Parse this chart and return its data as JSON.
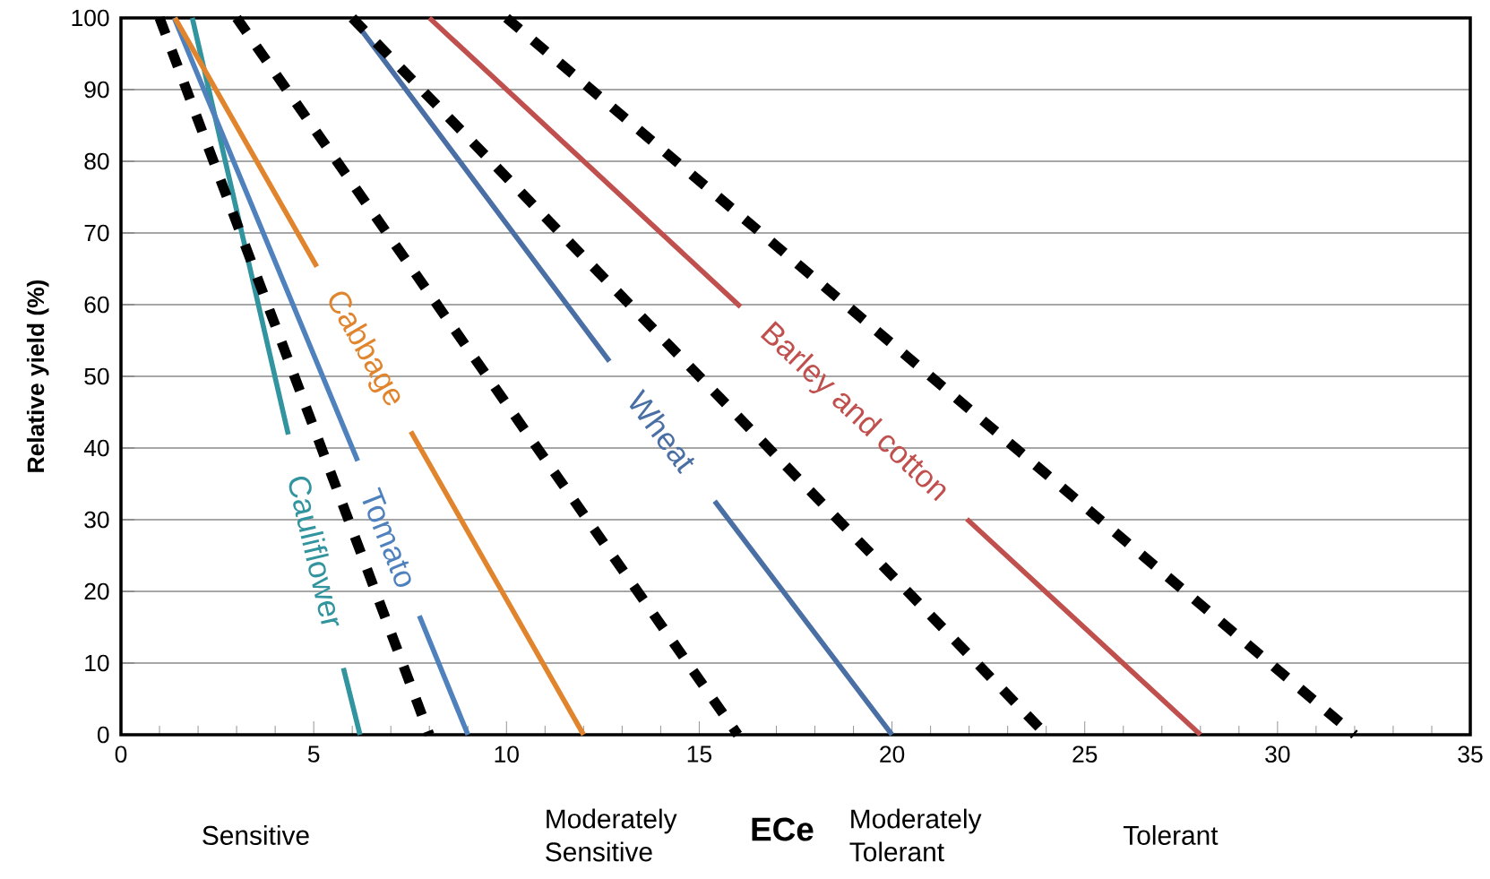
{
  "chart_data": {
    "type": "line",
    "xlabel": "ECe",
    "ylabel": "Relative yield (%)",
    "xlim": [
      0,
      35
    ],
    "ylim": [
      0,
      100
    ],
    "xticks": [
      0,
      5,
      10,
      15,
      20,
      25,
      30,
      35
    ],
    "yticks": [
      0,
      10,
      20,
      30,
      40,
      50,
      60,
      70,
      80,
      90,
      100
    ],
    "grid": "y",
    "line_style": "solid",
    "marker": "none",
    "series": [
      {
        "name": "Cauliflower",
        "color": "#31949e",
        "x": [
          1.85,
          4.34,
          5.05,
          5.77,
          6.2
        ],
        "values": [
          100,
          41.9,
          null,
          9.3,
          0
        ]
      },
      {
        "name": "Tomato",
        "color": "#4f81bd",
        "x": [
          1.38,
          6.14,
          6.9,
          7.74,
          9.0
        ],
        "values": [
          100,
          38.2,
          null,
          16.6,
          0
        ]
      },
      {
        "name": "Cabbage",
        "color": "#e0852e",
        "x": [
          1.4,
          5.08,
          6.3,
          7.52,
          12.0
        ],
        "values": [
          100,
          65.3,
          null,
          42.3,
          0
        ]
      },
      {
        "name": "Wheat",
        "color": "#4a6fa5",
        "x": [
          6.0,
          12.67,
          14.0,
          15.4,
          20.0
        ],
        "values": [
          100,
          52.1,
          null,
          32.6,
          0
        ]
      },
      {
        "name": "Barley and cotton",
        "color": "#c0504d",
        "x": [
          8.0,
          16.07,
          19.0,
          21.94,
          28.0
        ],
        "values": [
          100,
          59.7,
          null,
          30.1,
          0
        ]
      },
      {
        "color": "#000000",
        "line_style": "dashed",
        "x": [
          1.0,
          8.0
        ],
        "values": [
          100,
          0
        ]
      },
      {
        "color": "#000000",
        "line_style": "dashed",
        "x": [
          3.0,
          16.0
        ],
        "values": [
          100,
          0
        ]
      },
      {
        "color": "#000000",
        "line_style": "dashed",
        "x": [
          6.0,
          24.0
        ],
        "values": [
          100,
          0
        ]
      },
      {
        "color": "#000000",
        "line_style": "dashed",
        "x": [
          10.0,
          32.0
        ],
        "values": [
          100,
          0
        ]
      }
    ],
    "annotations": [
      "Sensitive",
      "Moderately Sensitive",
      "Moderately Tolerant",
      "Tolerant"
    ]
  }
}
